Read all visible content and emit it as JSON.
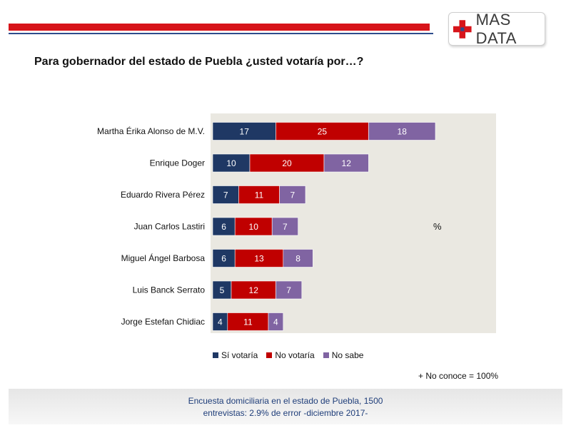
{
  "brand": {
    "name": "MAS DATA",
    "colors": {
      "red": "#d7141a",
      "blue": "#2d4c8c"
    }
  },
  "title": "Para gobernador del estado de Puebla ¿usted votaría por…?",
  "unit_label": "%",
  "note": "+ No conoce = 100%",
  "footer": {
    "line1": "Encuesta domiciliaria en el estado de Puebla, 1500",
    "line2": "entrevistas: 2.9% de error -diciembre 2017-"
  },
  "chart_data": {
    "type": "bar",
    "orientation": "horizontal",
    "stacked": true,
    "categories": [
      "Martha Érika Alonso de M.V.",
      "Enrique Doger",
      "Eduardo Rivera Pérez",
      "Juan Carlos Lastiri",
      "Miguel Ángel Barbosa",
      "Luis Banck Serrato",
      "Jorge Estefan Chidiac"
    ],
    "series": [
      {
        "name": "Sí votaría",
        "color": "#1f3864",
        "values": [
          17,
          10,
          7,
          6,
          6,
          5,
          4
        ]
      },
      {
        "name": "No votaría",
        "color": "#c00000",
        "values": [
          25,
          20,
          11,
          10,
          13,
          12,
          11
        ]
      },
      {
        "name": "No sabe",
        "color": "#8064a2",
        "values": [
          18,
          12,
          7,
          7,
          8,
          7,
          4
        ]
      }
    ],
    "xlim": [
      0,
      90
    ],
    "grid": false,
    "legend_position": "bottom"
  }
}
